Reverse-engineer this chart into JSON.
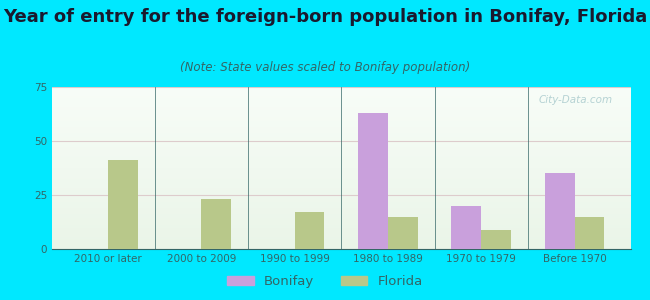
{
  "title": "Year of entry for the foreign-born population in Bonifay, Florida",
  "subtitle": "(Note: State values scaled to Bonifay population)",
  "categories": [
    "2010 or later",
    "2000 to 2009",
    "1990 to 1999",
    "1980 to 1989",
    "1970 to 1979",
    "Before 1970"
  ],
  "bonifay_values": [
    0,
    0,
    0,
    63,
    20,
    35
  ],
  "florida_values": [
    41,
    23,
    17,
    15,
    9,
    15
  ],
  "bonifay_color": "#c9a0dc",
  "florida_color": "#b8c88a",
  "background_outer": "#00e8ff",
  "ylim": [
    0,
    75
  ],
  "yticks": [
    0,
    25,
    50,
    75
  ],
  "bar_width": 0.32,
  "title_fontsize": 13,
  "subtitle_fontsize": 8.5,
  "tick_fontsize": 7.5,
  "legend_fontsize": 9.5,
  "tick_color": "#336666",
  "title_color": "#1a1a2e",
  "subtitle_color": "#336666"
}
